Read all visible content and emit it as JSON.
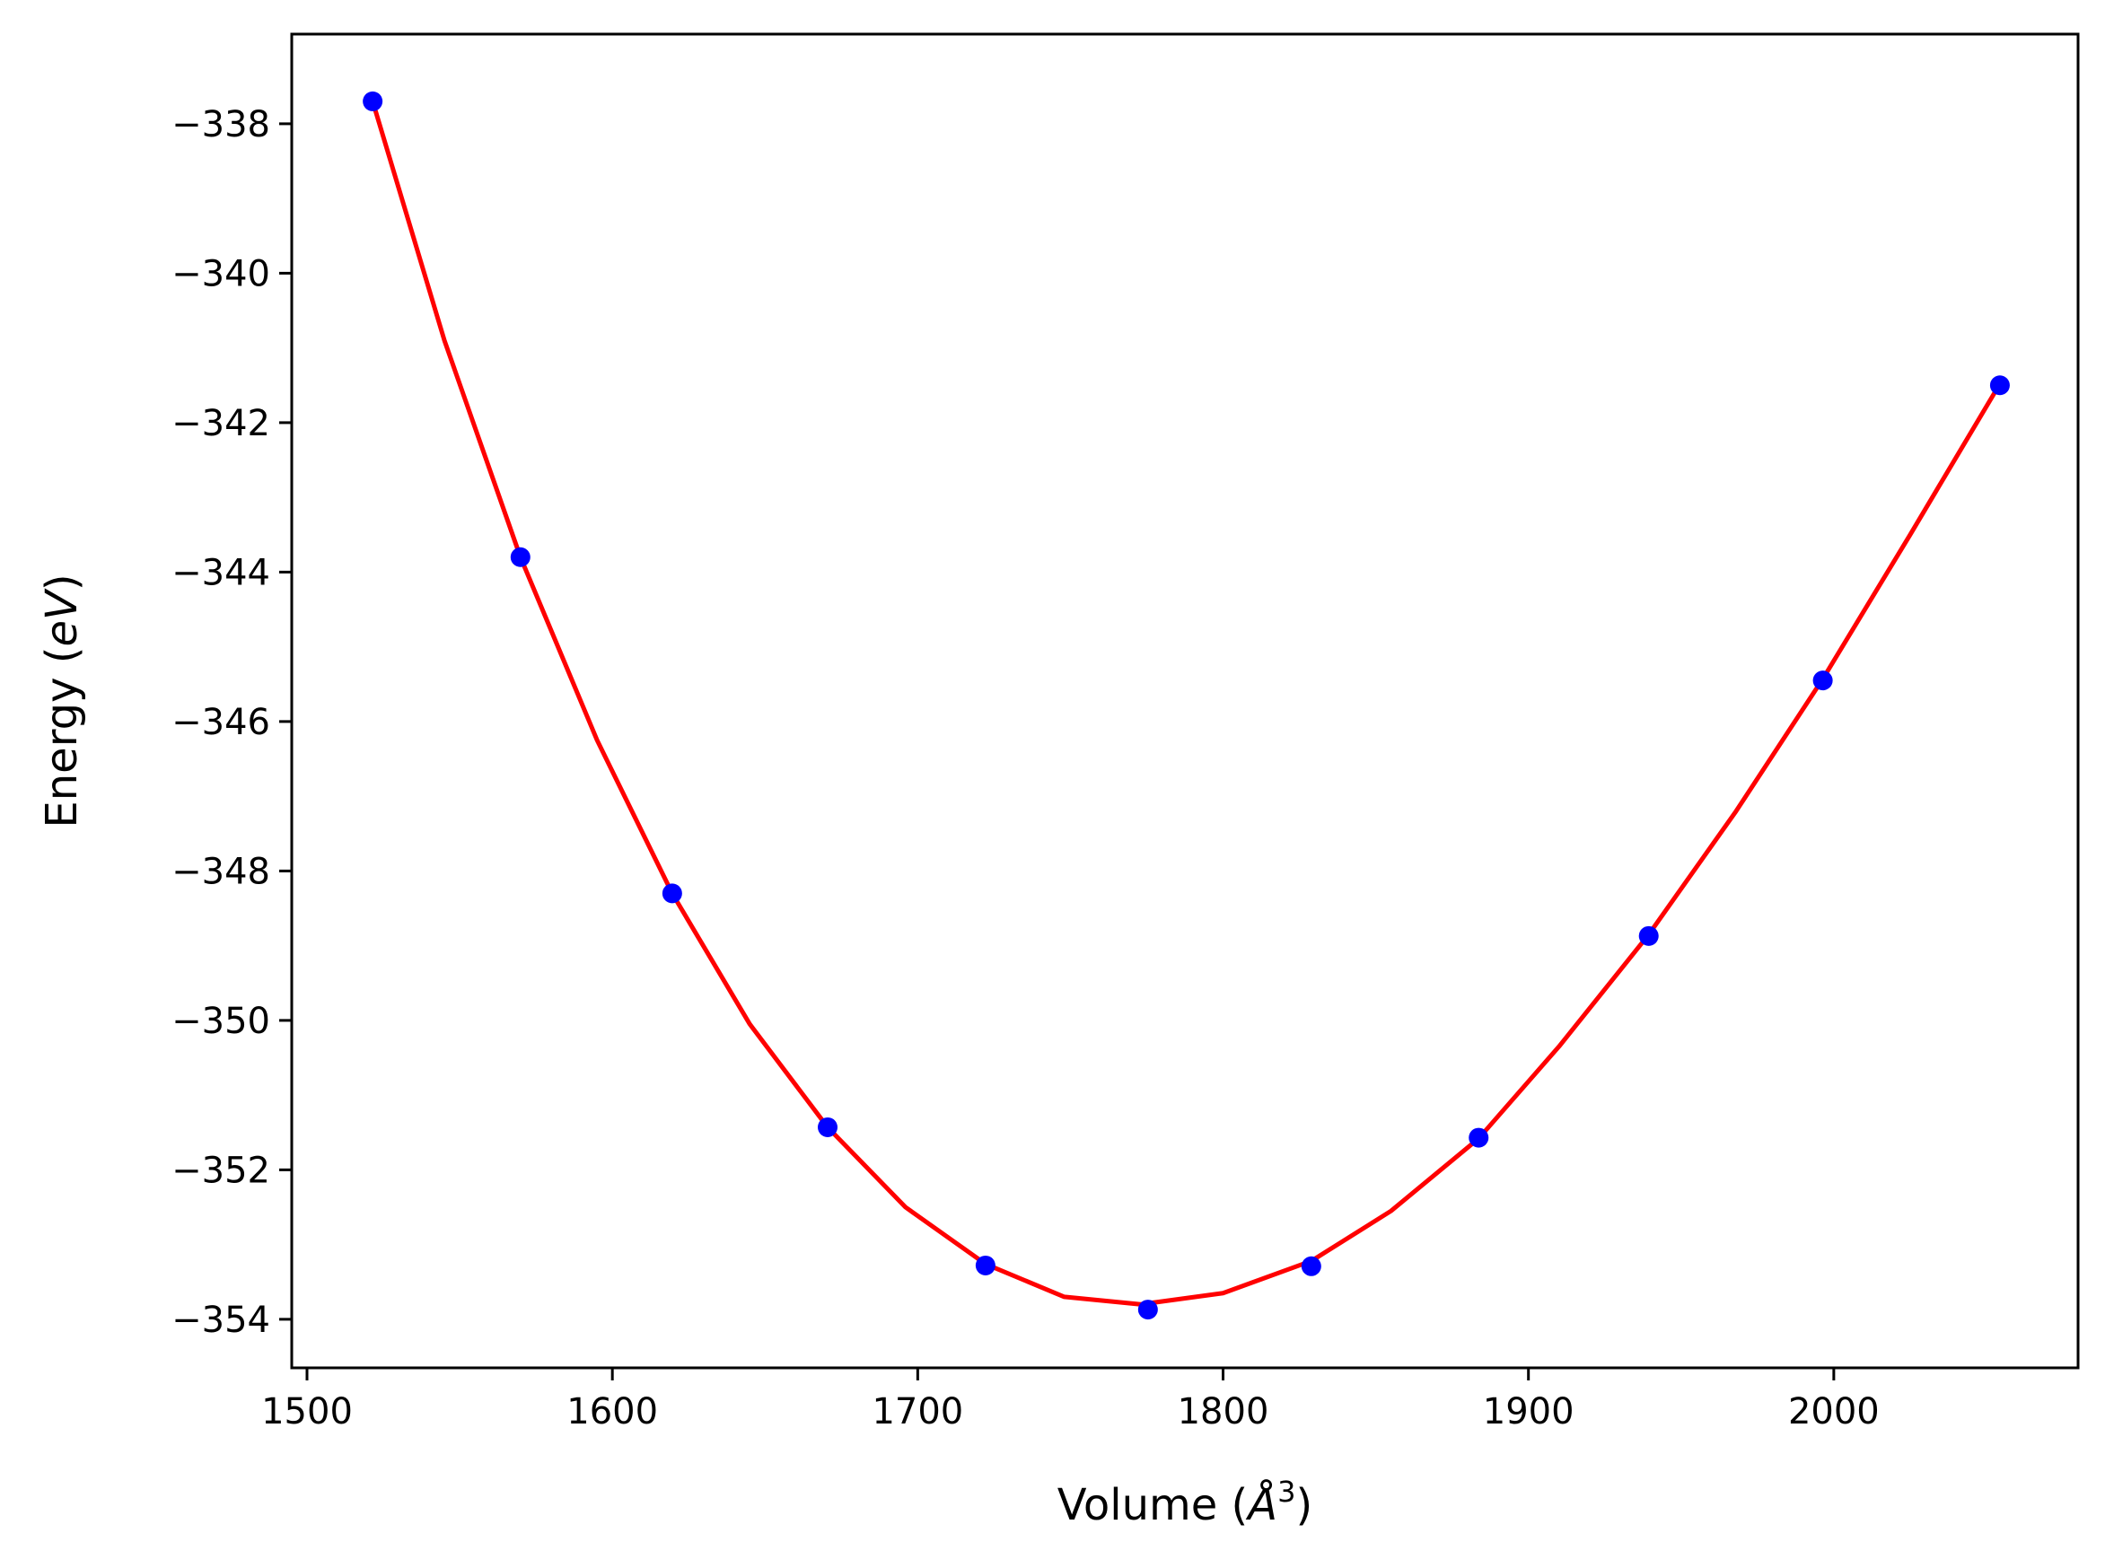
{
  "chart_data": {
    "type": "scatter",
    "xlabel": "Volume (",
    "xlabel_unit": "Å",
    "xlabel_exp": "3",
    "xlabel_close": ")",
    "ylabel": "Energy (",
    "ylabel_unit": "eV",
    "ylabel_close": ")",
    "xlim": [
      1495,
      2080
    ],
    "ylim": [
      -354.65,
      -336.8
    ],
    "x_ticks": [
      1500,
      1600,
      1700,
      1800,
      1900,
      2000
    ],
    "x_tick_labels": [
      "1500",
      "1600",
      "1700",
      "1800",
      "1900",
      "2000"
    ],
    "y_ticks": [
      -338,
      -340,
      -342,
      -344,
      -346,
      -348,
      -350,
      -352,
      -354
    ],
    "y_tick_labels": [
      "−338",
      "−340",
      "−342",
      "−344",
      "−346",
      "−348",
      "−350",
      "−352",
      "−354"
    ],
    "grid": false,
    "legend": "none",
    "series": [
      {
        "kind": "points",
        "color": "#0000ff",
        "x": [
          1521.5,
          1569.9,
          1619.6,
          1670.5,
          1722.2,
          1775.4,
          1828.9,
          1883.7,
          1939.4,
          1996.4,
          2054.4
        ],
        "y": [
          -337.7,
          -343.8,
          -348.3,
          -351.43,
          -353.28,
          -353.87,
          -353.29,
          -351.57,
          -348.87,
          -345.45,
          -341.5
        ]
      },
      {
        "kind": "fit",
        "color": "#ff0000",
        "x": [
          1521.5,
          1545,
          1569.9,
          1595,
          1619.6,
          1645,
          1670.5,
          1696,
          1722.2,
          1748,
          1773,
          1800,
          1828.9,
          1855,
          1883.7,
          1910,
          1939.4,
          1968,
          1996.4,
          2025,
          2054.4
        ],
        "y": [
          -337.7,
          -340.9,
          -343.8,
          -346.25,
          -348.3,
          -350.05,
          -351.43,
          -352.5,
          -353.26,
          -353.7,
          -353.8,
          -353.65,
          -353.22,
          -352.55,
          -351.58,
          -350.35,
          -348.85,
          -347.2,
          -345.43,
          -343.5,
          -341.48
        ]
      }
    ]
  }
}
